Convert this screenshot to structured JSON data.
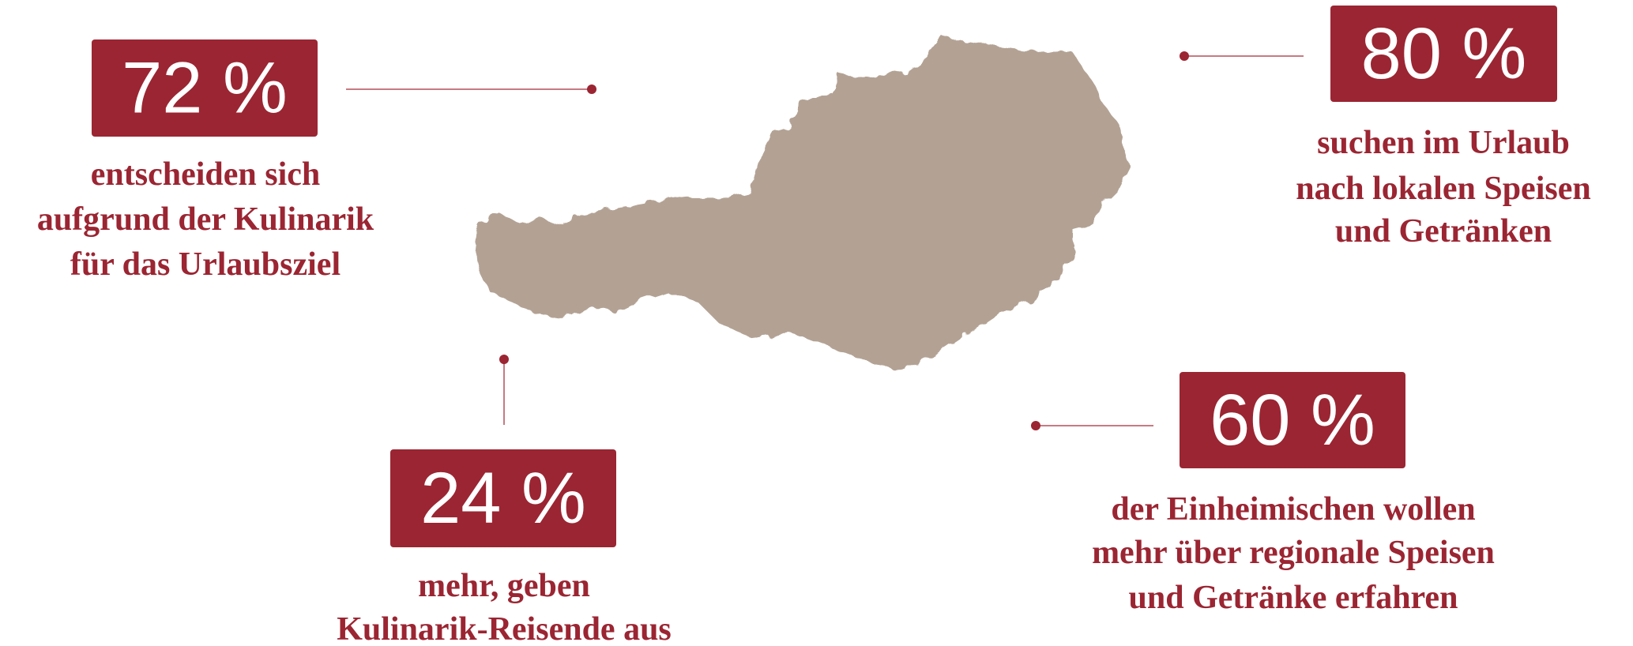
{
  "stats": [
    {
      "percent": "72 %",
      "lines": [
        "entscheiden sich",
        "aufgrund der Kulinarik",
        "für das Urlaubsziel"
      ]
    },
    {
      "percent": "80 %",
      "lines": [
        "suchen im Urlaub",
        "nach lokalen Speisen",
        "und Getränken"
      ]
    },
    {
      "percent": "60 %",
      "lines": [
        "der Einheimischen wollen",
        "mehr über regionale Speisen",
        "und Getränke erfahren"
      ]
    },
    {
      "percent": "24 %",
      "lines": [
        "mehr, geben",
        "Kulinarik-Reisende aus"
      ]
    }
  ]
}
